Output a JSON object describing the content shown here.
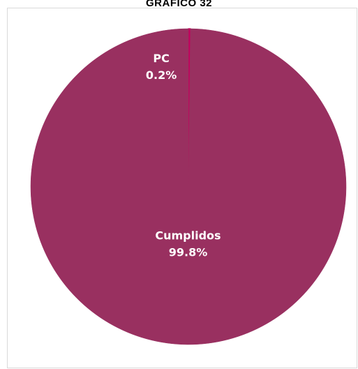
{
  "page_title": "GRÁFICO 32",
  "chart_data": {
    "type": "pie",
    "title": "",
    "slices": [
      {
        "category": "PC",
        "percent_label": "0.2%",
        "value": 0.2,
        "color": "#c4005e"
      },
      {
        "category": "Cumplidos",
        "percent_label": "99.8%",
        "value": 99.8,
        "color": "#993060"
      }
    ],
    "start_angle_deg": 0,
    "direction": "clockwise",
    "legend": "none",
    "background": "#ffffff",
    "label_color": "#ffffff"
  }
}
